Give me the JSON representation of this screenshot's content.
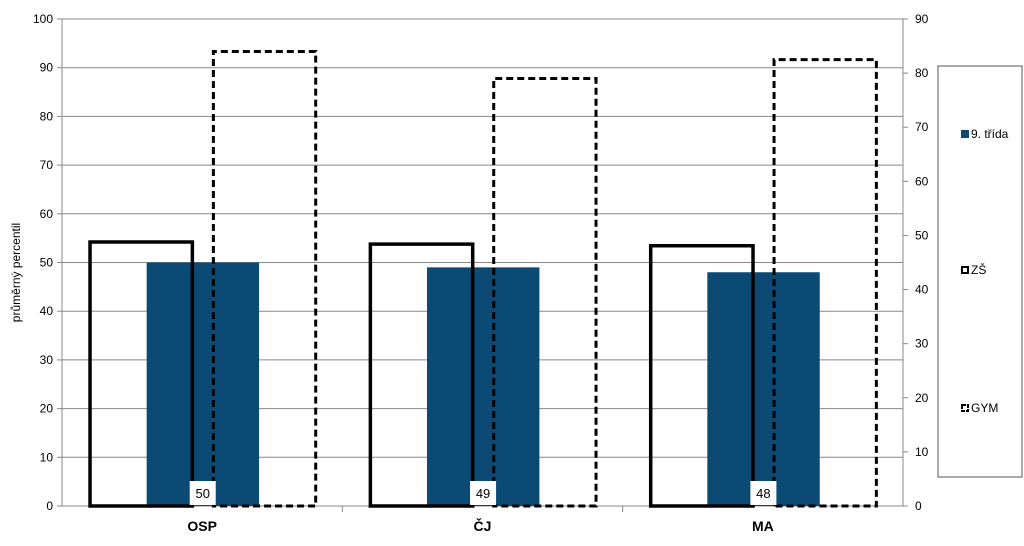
{
  "chart_data": {
    "type": "bar",
    "categories": [
      "OSP",
      "ČJ",
      "MA"
    ],
    "ylabel": "průměrný percentil",
    "ylim": [
      0,
      100
    ],
    "y_ticks": [
      0,
      10,
      20,
      30,
      40,
      50,
      60,
      70,
      80,
      90,
      100
    ],
    "y2lim": [
      0,
      90
    ],
    "y2_ticks": [
      0,
      10,
      20,
      30,
      40,
      50,
      60,
      70,
      80,
      90
    ],
    "grid": true,
    "legend_position": "right",
    "series": [
      {
        "name": "9. třída",
        "axis": "left",
        "style": "filled",
        "color": "#0b4a74",
        "values": [
          50,
          49,
          48
        ],
        "data_labels": [
          "50",
          "49",
          "48"
        ]
      },
      {
        "name": "ZŠ",
        "axis": "right",
        "style": "outline-solid",
        "color": "#000000",
        "values": [
          48.8,
          48.4,
          48.1
        ]
      },
      {
        "name": "GYM",
        "axis": "right",
        "style": "outline-dashed",
        "color": "#000000",
        "values": [
          84,
          79,
          82.5
        ]
      }
    ]
  }
}
